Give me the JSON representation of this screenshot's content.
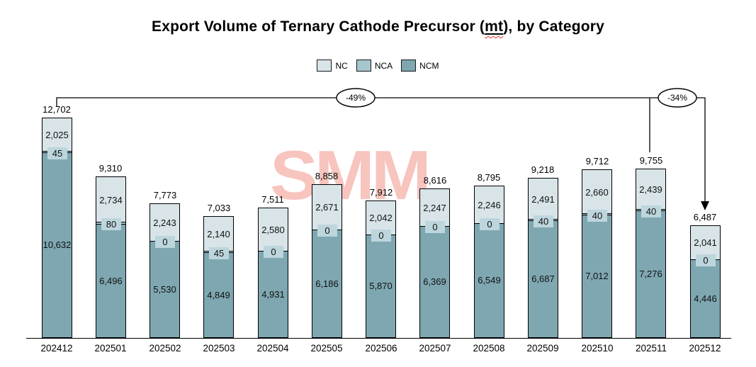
{
  "title_parts": {
    "before": "Export Volume of Ternary Cathode Precursor (",
    "mt": "mt",
    "after": "), by Category"
  },
  "watermark": {
    "text": "SMM",
    "color": "#f7c4be"
  },
  "legend": [
    {
      "label": "NC",
      "color": "#d8e4e8"
    },
    {
      "label": "NCA",
      "color": "#a5c6cc"
    },
    {
      "label": "NCM",
      "color": "#7ea7b1"
    }
  ],
  "colors": {
    "nc": "#d8e4e8",
    "nca": "#a5c6cc",
    "ncm": "#7ea7b1",
    "nca_label_bg": "#bdd5dc",
    "axis": "#000000",
    "annotation_line": "#000000"
  },
  "chart_data": {
    "type": "bar",
    "stacked": true,
    "title": "Export Volume of Ternary Cathode Precursor (mt), by Category",
    "xlabel": "",
    "ylabel": "",
    "grid": false,
    "legend_position": "top",
    "ylim": [
      0,
      13000
    ],
    "categories": [
      "202412",
      "202501",
      "202502",
      "202503",
      "202504",
      "202505",
      "202506",
      "202507",
      "202508",
      "202509",
      "202510",
      "202511",
      "202512"
    ],
    "series": [
      {
        "name": "NC",
        "color": "#d8e4e8",
        "values": [
          2025,
          2734,
          2243,
          2140,
          2580,
          2671,
          2042,
          2247,
          2246,
          2491,
          2660,
          2439,
          2041
        ]
      },
      {
        "name": "NCA",
        "color": "#a5c6cc",
        "values": [
          45,
          80,
          0,
          45,
          0,
          0,
          0,
          0,
          0,
          40,
          40,
          40,
          0
        ]
      },
      {
        "name": "NCM",
        "color": "#7ea7b1",
        "values": [
          10632,
          6496,
          5530,
          4849,
          4931,
          6186,
          5870,
          6369,
          6549,
          6687,
          7012,
          7276,
          4446
        ]
      }
    ],
    "totals": [
      12702,
      9310,
      7773,
      7033,
      7511,
      8858,
      7912,
      8616,
      8795,
      9218,
      9712,
      9755,
      6487
    ],
    "annotations": [
      {
        "label": "-49%",
        "from": "202412",
        "to": "202512"
      },
      {
        "label": "-34%",
        "from": "202511",
        "to": "202512"
      }
    ]
  }
}
